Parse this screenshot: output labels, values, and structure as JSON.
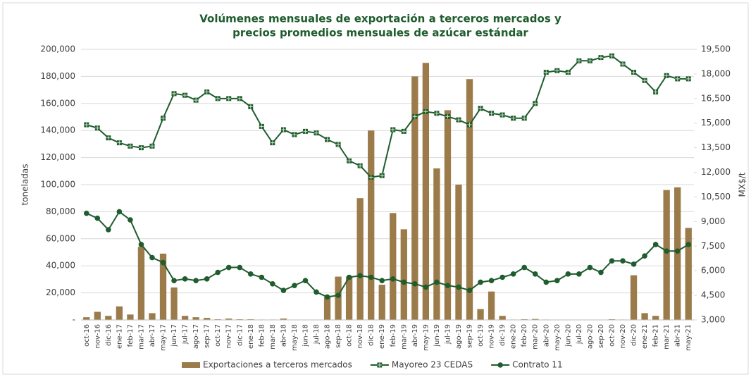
{
  "chart_data": {
    "type": "bar",
    "title": [
      "Volúmenes mensuales de exportación a terceros mercados y",
      "precios promedios mensuales de azúcar estándar"
    ],
    "ylabel": "toneladas",
    "y2label": "MX$/t",
    "categories": [
      "oct-16",
      "nov-16",
      "dic-16",
      "ene-17",
      "feb-17",
      "mar-17",
      "abr-17",
      "may-17",
      "jun-17",
      "jul-17",
      "ago-17",
      "sep-17",
      "oct-17",
      "nov-17",
      "dic-17",
      "ene-18",
      "feb-18",
      "mar-18",
      "abr-18",
      "may-18",
      "jun-18",
      "jul-18",
      "ago-18",
      "sep-18",
      "oct-18",
      "nov-18",
      "dic-18",
      "ene-19",
      "feb-19",
      "mar-19",
      "abr-19",
      "may-19",
      "jun-19",
      "jul-19",
      "ago-19",
      "sep-19",
      "oct-19",
      "nov-19",
      "dic-19",
      "ene-20",
      "feb-20",
      "mar-20",
      "abr-20",
      "may-20",
      "jun-20",
      "jul-20",
      "ago-20",
      "sep-20",
      "oct-20",
      "nov-20",
      "dic-20",
      "ene-21",
      "feb-21",
      "mar-21",
      "abr-21",
      "may-21"
    ],
    "series": [
      {
        "name": "Exportaciones a terceros mercados",
        "type": "bar",
        "color": "#9c7b4a",
        "values": [
          2000,
          6000,
          3000,
          10000,
          4000,
          54000,
          5000,
          49000,
          24000,
          3000,
          2000,
          1500,
          500,
          1000,
          500,
          500,
          300,
          300,
          1000,
          200,
          200,
          200,
          17000,
          32000,
          32000,
          90000,
          140000,
          26000,
          79000,
          67000,
          180000,
          190000,
          112000,
          155000,
          100000,
          178000,
          8000,
          21000,
          3000,
          300,
          500,
          700,
          300,
          200,
          200,
          200,
          0,
          0,
          500,
          300,
          33000,
          5000,
          3000,
          96000,
          98000,
          68000
        ]
      },
      {
        "name": "Mayoreo 23 CEDAS",
        "type": "line",
        "axis": "y2",
        "marker": "square",
        "color": "#1f5c2e",
        "values": [
          14900,
          14700,
          14100,
          13800,
          13600,
          13500,
          13600,
          15300,
          16800,
          16700,
          16400,
          16900,
          16500,
          16500,
          16500,
          16000,
          14800,
          13800,
          14600,
          14300,
          14500,
          14400,
          14000,
          13700,
          12700,
          12400,
          11700,
          11800,
          14600,
          14500,
          15400,
          15700,
          15600,
          15400,
          15200,
          14900,
          15900,
          15600,
          15500,
          15300,
          15300,
          16200,
          18100,
          18200,
          18100,
          18800,
          18800,
          19000,
          19100,
          18600,
          18100,
          17600,
          16900,
          17900,
          17700,
          17700
        ]
      },
      {
        "name": "Contrato 11",
        "type": "line",
        "axis": "y2",
        "marker": "circle",
        "color": "#1f5c2e",
        "values": [
          9500,
          9200,
          8500,
          9600,
          9100,
          7600,
          6800,
          6500,
          5400,
          5500,
          5400,
          5500,
          5900,
          6200,
          6200,
          5800,
          5600,
          5200,
          4800,
          5100,
          5400,
          4700,
          4400,
          4500,
          5600,
          5700,
          5600,
          5400,
          5500,
          5300,
          5200,
          5000,
          5300,
          5100,
          5000,
          4800,
          5300,
          5400,
          5600,
          5800,
          6200,
          5800,
          5300,
          5400,
          5800,
          5800,
          6200,
          5900,
          6600,
          6600,
          6400,
          6900,
          7600,
          7200,
          7200,
          7600
        ]
      }
    ],
    "ylim": [
      0,
      200000
    ],
    "yticks": [
      {
        "value": 0,
        "label": "-"
      },
      {
        "value": 20000,
        "label": "20,000"
      },
      {
        "value": 40000,
        "label": "40,000"
      },
      {
        "value": 60000,
        "label": "60,000"
      },
      {
        "value": 80000,
        "label": "80,000"
      },
      {
        "value": 100000,
        "label": "100,000"
      },
      {
        "value": 120000,
        "label": "120,000"
      },
      {
        "value": 140000,
        "label": "140,000"
      },
      {
        "value": 160000,
        "label": "160,000"
      },
      {
        "value": 180000,
        "label": "180,000"
      },
      {
        "value": 200000,
        "label": "200,000"
      }
    ],
    "y2lim": [
      3000,
      19500
    ],
    "y2ticks": [
      {
        "value": 3000,
        "label": "3,000"
      },
      {
        "value": 4500,
        "label": "4,500"
      },
      {
        "value": 6000,
        "label": "6,000"
      },
      {
        "value": 7500,
        "label": "7,500"
      },
      {
        "value": 9000,
        "label": "9,000"
      },
      {
        "value": 10500,
        "label": "10,500"
      },
      {
        "value": 12000,
        "label": "12,000"
      },
      {
        "value": 13500,
        "label": "13,500"
      },
      {
        "value": 15000,
        "label": "15,000"
      },
      {
        "value": 16500,
        "label": "16,500"
      },
      {
        "value": 18000,
        "label": "18,000"
      },
      {
        "value": 19500,
        "label": "19,500"
      }
    ],
    "grid": true,
    "legend": "bottom"
  }
}
